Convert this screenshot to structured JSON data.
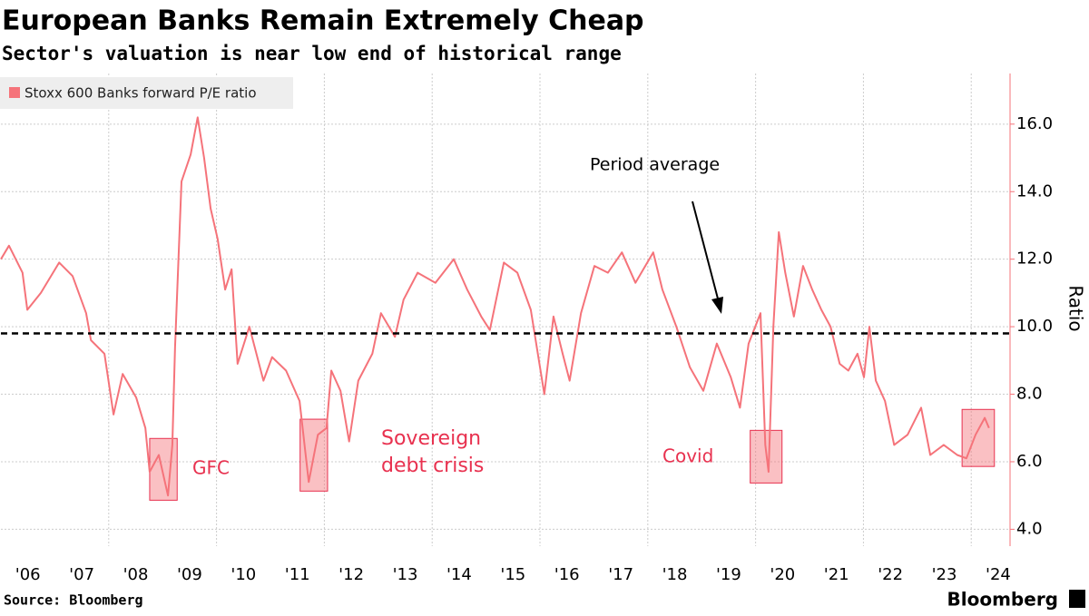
{
  "chart_data": {
    "type": "line",
    "title": "European Banks Remain Extremely Cheap",
    "subtitle": "Sector's valuation is near low end of historical range",
    "y_axis_label": "Ratio",
    "source": "Source: Bloomberg",
    "brand": "Bloomberg",
    "legend_position": "top-left",
    "grid": true,
    "xlim": [
      2006,
      2024.72
    ],
    "xticks": [
      {
        "value": 2006.5,
        "label": "'06"
      },
      {
        "value": 2007.5,
        "label": "'07"
      },
      {
        "value": 2008.5,
        "label": "'08"
      },
      {
        "value": 2009.5,
        "label": "'09"
      },
      {
        "value": 2010.5,
        "label": "'10"
      },
      {
        "value": 2011.5,
        "label": "'11"
      },
      {
        "value": 2012.5,
        "label": "'12"
      },
      {
        "value": 2013.5,
        "label": "'13"
      },
      {
        "value": 2014.5,
        "label": "'14"
      },
      {
        "value": 2015.5,
        "label": "'15"
      },
      {
        "value": 2016.5,
        "label": "'16"
      },
      {
        "value": 2017.5,
        "label": "'17"
      },
      {
        "value": 2018.5,
        "label": "'18"
      },
      {
        "value": 2019.5,
        "label": "'19"
      },
      {
        "value": 2020.5,
        "label": "'20"
      },
      {
        "value": 2021.5,
        "label": "'21"
      },
      {
        "value": 2022.5,
        "label": "'22"
      },
      {
        "value": 2023.5,
        "label": "'23"
      },
      {
        "value": 2024.5,
        "label": "'24"
      }
    ],
    "xgrid": [
      2008,
      2010,
      2012,
      2014,
      2016,
      2018,
      2020,
      2022,
      2024
    ],
    "ylim": [
      3.5,
      17.5
    ],
    "yticks": [
      {
        "value": 4,
        "label": "4.0"
      },
      {
        "value": 6,
        "label": "6.0"
      },
      {
        "value": 8,
        "label": "8.0"
      },
      {
        "value": 10,
        "label": "10.0"
      },
      {
        "value": 12,
        "label": "12.0"
      },
      {
        "value": 14,
        "label": "14.0"
      },
      {
        "value": 16,
        "label": "16.0"
      }
    ],
    "reference_line": {
      "label": "Period average",
      "value": 9.8
    },
    "highlights": [
      {
        "label": "GFC",
        "x": [
          2008.76,
          2009.27
        ],
        "y": [
          4.86,
          6.69
        ]
      },
      {
        "label": "Sovereign debt crisis",
        "x": [
          2011.55,
          2012.06
        ],
        "y": [
          5.13,
          7.26
        ]
      },
      {
        "label": "Covid",
        "x": [
          2019.9,
          2020.49
        ],
        "y": [
          5.37,
          6.93
        ]
      },
      {
        "label": null,
        "x": [
          2023.83,
          2024.43
        ],
        "y": [
          5.86,
          7.55
        ]
      }
    ],
    "series": [
      {
        "name": "Stoxx 600 Banks forward P/E ratio",
        "color": "#f5737a",
        "x": [
          2006.0,
          2006.15,
          2006.4,
          2006.49,
          2006.74,
          2007.08,
          2007.33,
          2007.58,
          2007.67,
          2007.92,
          2008.09,
          2008.26,
          2008.51,
          2008.68,
          2008.76,
          2008.93,
          2009.1,
          2009.18,
          2009.23,
          2009.35,
          2009.52,
          2009.65,
          2009.77,
          2009.89,
          2010.02,
          2010.16,
          2010.28,
          2010.39,
          2010.61,
          2010.87,
          2011.03,
          2011.29,
          2011.54,
          2011.71,
          2011.88,
          2012.04,
          2012.13,
          2012.3,
          2012.46,
          2012.63,
          2012.89,
          2013.05,
          2013.31,
          2013.47,
          2013.73,
          2014.06,
          2014.4,
          2014.65,
          2014.91,
          2015.07,
          2015.33,
          2015.58,
          2015.83,
          2016.08,
          2016.25,
          2016.42,
          2016.55,
          2016.76,
          2017.01,
          2017.26,
          2017.52,
          2017.77,
          2018.1,
          2018.27,
          2018.53,
          2018.78,
          2019.03,
          2019.28,
          2019.54,
          2019.71,
          2019.87,
          2020.09,
          2020.18,
          2020.24,
          2020.33,
          2020.43,
          2020.55,
          2020.71,
          2020.88,
          2021.05,
          2021.22,
          2021.39,
          2021.56,
          2021.72,
          2021.89,
          2022.01,
          2022.11,
          2022.23,
          2022.4,
          2022.57,
          2022.82,
          2023.07,
          2023.24,
          2023.49,
          2023.74,
          2023.91,
          2024.08,
          2024.25,
          2024.33
        ],
        "values": [
          12.0,
          12.4,
          11.6,
          10.5,
          11.0,
          11.9,
          11.5,
          10.4,
          9.6,
          9.2,
          7.4,
          8.6,
          7.9,
          7.0,
          5.7,
          6.2,
          5.0,
          6.5,
          9.4,
          14.3,
          15.1,
          16.2,
          15.0,
          13.5,
          12.6,
          11.1,
          11.7,
          8.9,
          10.0,
          8.4,
          9.1,
          8.7,
          7.8,
          5.4,
          6.8,
          7.0,
          8.7,
          8.1,
          6.6,
          8.4,
          9.2,
          10.4,
          9.7,
          10.8,
          11.6,
          11.3,
          12.0,
          11.1,
          10.3,
          9.9,
          11.9,
          11.6,
          10.5,
          8.0,
          10.3,
          9.2,
          8.4,
          10.4,
          11.8,
          11.6,
          12.2,
          11.3,
          12.2,
          11.1,
          10.0,
          8.8,
          8.1,
          9.5,
          8.5,
          7.6,
          9.5,
          10.4,
          6.5,
          5.7,
          10.0,
          12.8,
          11.6,
          10.3,
          11.8,
          11.1,
          10.5,
          10.0,
          8.9,
          8.7,
          9.2,
          8.5,
          10.0,
          8.4,
          7.8,
          6.5,
          6.8,
          7.6,
          6.2,
          6.5,
          6.2,
          6.1,
          6.8,
          7.3,
          7.0
        ]
      }
    ]
  }
}
